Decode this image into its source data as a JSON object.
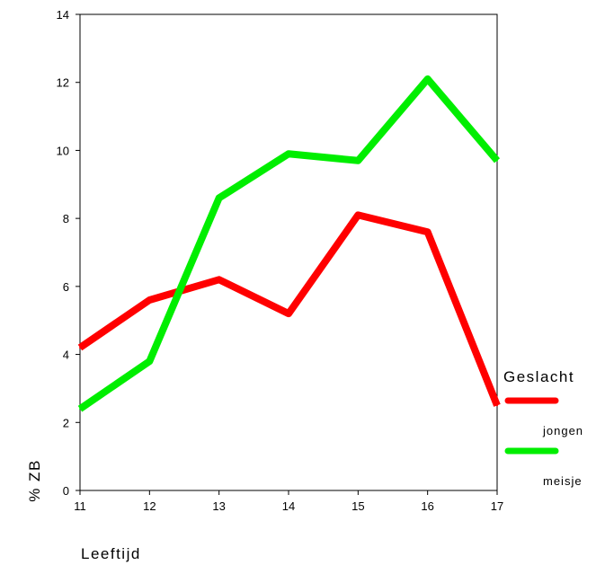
{
  "chart_data": {
    "type": "line",
    "title": "",
    "xlabel": "Leeftijd",
    "ylabel": "% ZB",
    "x": [
      11,
      12,
      13,
      14,
      15,
      16,
      17
    ],
    "xlim": [
      11,
      17
    ],
    "ylim": [
      0,
      14
    ],
    "x_ticks": [
      "11",
      "12",
      "13",
      "14",
      "15",
      "16",
      "17"
    ],
    "y_ticks": [
      "0",
      "2",
      "4",
      "6",
      "8",
      "10",
      "12",
      "14"
    ],
    "grid": false,
    "legend_title": "Geslacht",
    "legend_position": "right",
    "series": [
      {
        "name": "jongen",
        "color": "#ff0000",
        "values": [
          4.2,
          5.6,
          6.2,
          5.2,
          8.1,
          7.6,
          2.5
        ]
      },
      {
        "name": "meisje",
        "color": "#00ee00",
        "values": [
          2.4,
          3.8,
          8.6,
          9.9,
          9.7,
          12.1,
          9.7
        ]
      }
    ]
  }
}
